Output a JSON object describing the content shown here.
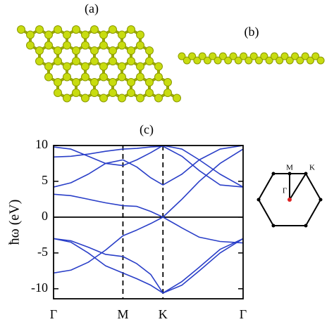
{
  "panel_labels": [
    "(a)",
    "(b)",
    "(c)"
  ],
  "chart_data": {
    "type": "line",
    "ylabel": "ħω (eV)",
    "x": [
      0,
      0.25,
      0.5,
      0.75,
      1.0,
      1.2,
      1.4,
      1.577,
      1.85,
      2.1,
      2.4,
      2.732
    ],
    "xlim": [
      0,
      2.732
    ],
    "xticks": [
      {
        "value": 0,
        "label": "Γ"
      },
      {
        "value": 1.0,
        "label": "M"
      },
      {
        "value": 1.577,
        "label": "K"
      },
      {
        "value": 2.732,
        "label": "Γ"
      }
    ],
    "ylim": [
      -11.4,
      10
    ],
    "yticks": [
      -10,
      -5,
      0,
      5,
      10
    ],
    "zero_line": true,
    "series": [
      {
        "color": "#2a3fc8",
        "values": [
          -7.8,
          -7.4,
          -6.3,
          -4.6,
          -2.6,
          -1.8,
          -0.9,
          0,
          -1.5,
          -2.8,
          -3.4,
          -3.6
        ]
      },
      {
        "color": "#2a3fc8",
        "values": [
          3.2,
          3.0,
          2.5,
          2.0,
          1.6,
          1.5,
          0.8,
          0,
          2.5,
          5.0,
          7.5,
          9.5
        ]
      },
      {
        "color": "#2a3fc8",
        "values": [
          -3.0,
          -3.3,
          -4.2,
          -5.2,
          -5.5,
          -6.5,
          -8.0,
          -10.6,
          -9.0,
          -7.0,
          -4.5,
          -3.0
        ]
      },
      {
        "color": "#2a3fc8",
        "values": [
          -3.0,
          -3.5,
          -5.0,
          -6.8,
          -7.8,
          -8.6,
          -9.5,
          -10.6,
          -9.5,
          -7.5,
          -5.0,
          -3.0
        ]
      },
      {
        "color": "#2a3fc8",
        "values": [
          4.2,
          4.8,
          6.0,
          7.5,
          8.0,
          7.0,
          5.5,
          4.5,
          6.0,
          8.0,
          9.5,
          10.0
        ]
      },
      {
        "color": "#2a3fc8",
        "values": [
          8.4,
          8.5,
          8.8,
          9.2,
          9.5,
          9.6,
          9.8,
          9.9,
          8.5,
          6.5,
          4.5,
          4.2
        ]
      },
      {
        "color": "#2a3fc8",
        "values": [
          9.8,
          9.5,
          8.5,
          7.5,
          7.2,
          8.0,
          9.0,
          10.0,
          9.5,
          8.0,
          6.0,
          4.2
        ]
      }
    ]
  },
  "inset": {
    "labels": [
      "M",
      "K",
      "Γ"
    ]
  }
}
